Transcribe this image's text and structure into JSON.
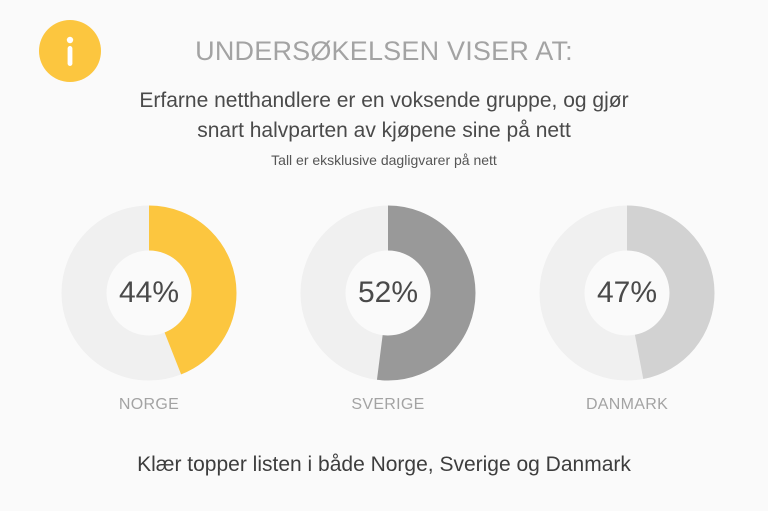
{
  "heading": "UNDERSØKELSEN VISER AT:",
  "headline_lines": [
    "Erfarne netthandlere er en voksende gruppe, og gjør",
    "snart halvparten av kjøpene sine på nett"
  ],
  "note": "Tall er eksklusive dagligvarer på nett",
  "footer": "Klær topper listen i både Norge, Sverige og Danmark",
  "info_icon": {
    "name": "info-icon",
    "color": "#fcc63f"
  },
  "colors": {
    "track": "#f0f0f0"
  },
  "chart_data": [
    {
      "type": "pie",
      "variant": "donut",
      "label": "NORGE",
      "value": 44,
      "value_label": "44%",
      "color": "#fcc63f"
    },
    {
      "type": "pie",
      "variant": "donut",
      "label": "SVERIGE",
      "value": 52,
      "value_label": "52%",
      "color": "#999999"
    },
    {
      "type": "pie",
      "variant": "donut",
      "label": "DANMARK",
      "value": 47,
      "value_label": "47%",
      "color": "#d2d2d2"
    }
  ]
}
